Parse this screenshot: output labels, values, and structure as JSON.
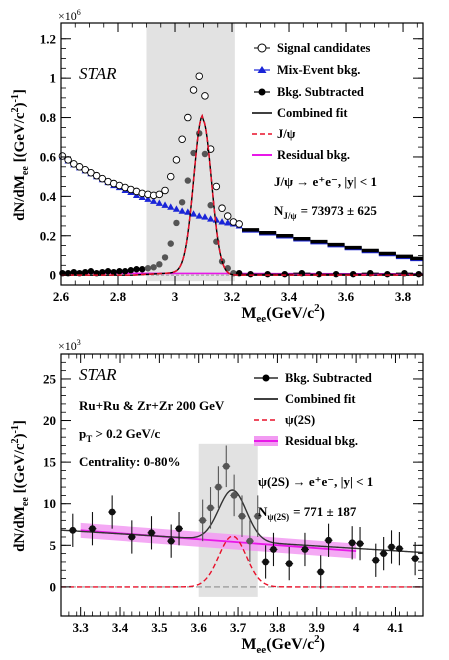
{
  "chart_data": [
    {
      "type": "scatter",
      "exponent_label": "×10",
      "exponent_power": "6",
      "xlabel_main": "M",
      "xlabel_sub": "ee",
      "xlabel_rest": "(GeV/c",
      "xlabel_sup": "2",
      "xlabel_end": ")",
      "ylabel": "dN/dMee [(GeV/c²)⁻¹]",
      "xlim": [
        2.6,
        3.87
      ],
      "ylim": [
        -0.05,
        1.28
      ],
      "x_ticks": [
        2.6,
        2.8,
        3.0,
        3.2,
        3.4,
        3.6,
        3.8
      ],
      "x_tick_labels": [
        "2.6",
        "2.8",
        "3",
        "3.2",
        "3.4",
        "3.6",
        "3.8"
      ],
      "y_ticks": [
        0,
        0.2,
        0.4,
        0.6,
        0.8,
        1.0,
        1.2
      ],
      "y_tick_labels": [
        "0",
        "0.2",
        "0.4",
        "0.6",
        "0.8",
        "1",
        "1.2"
      ],
      "shaded_region": [
        2.9,
        3.21
      ],
      "star_label": "STAR",
      "legend": [
        "Signal candidates",
        "Mix-Event bkg.",
        "Bkg. Subtracted",
        "Combined fit",
        "J/ψ",
        "Residual bkg."
      ],
      "annotation_channel": "J/ψ  → e⁺e⁻, |y| < 1",
      "annotation_count_label": "N",
      "annotation_count_sub": "J/ψ",
      "annotation_count_value": "= 73973  ± 625",
      "series": [
        {
          "name": "Signal candidates",
          "x": [
            2.605,
            2.625,
            2.645,
            2.665,
            2.685,
            2.705,
            2.725,
            2.745,
            2.765,
            2.785,
            2.805,
            2.825,
            2.845,
            2.865,
            2.885,
            2.905,
            2.925,
            2.945,
            2.965,
            2.985,
            3.005,
            3.025,
            3.045,
            3.065,
            3.085,
            3.105,
            3.125,
            3.145,
            3.165,
            3.185,
            3.205,
            3.225
          ],
          "y": [
            0.605,
            0.585,
            0.565,
            0.55,
            0.535,
            0.52,
            0.505,
            0.49,
            0.475,
            0.465,
            0.455,
            0.445,
            0.435,
            0.425,
            0.415,
            0.41,
            0.405,
            0.41,
            0.43,
            0.5,
            0.585,
            0.69,
            0.8,
            0.94,
            1.01,
            0.91,
            0.64,
            0.45,
            0.34,
            0.3,
            0.27,
            0.26
          ]
        },
        {
          "name": "Signal candidates (wide bins)",
          "x": [
            3.265,
            3.325,
            3.385,
            3.445,
            3.505,
            3.565,
            3.625,
            3.685,
            3.745,
            3.805,
            3.855
          ],
          "y": [
            0.23,
            0.215,
            0.2,
            0.185,
            0.17,
            0.155,
            0.14,
            0.125,
            0.11,
            0.095,
            0.085
          ]
        },
        {
          "name": "Mix-Event bkg.",
          "x": [
            2.605,
            2.625,
            2.645,
            2.665,
            2.685,
            2.705,
            2.725,
            2.745,
            2.765,
            2.785,
            2.805,
            2.825,
            2.845,
            2.865,
            2.885,
            2.905,
            2.925,
            2.945,
            2.965,
            2.985,
            3.005,
            3.025,
            3.045,
            3.065,
            3.085,
            3.105,
            3.125,
            3.145,
            3.165,
            3.185,
            3.205,
            3.225
          ],
          "y": [
            0.6,
            0.58,
            0.56,
            0.545,
            0.53,
            0.515,
            0.5,
            0.485,
            0.47,
            0.455,
            0.445,
            0.43,
            0.42,
            0.405,
            0.395,
            0.385,
            0.375,
            0.365,
            0.355,
            0.345,
            0.335,
            0.325,
            0.32,
            0.31,
            0.3,
            0.295,
            0.285,
            0.28,
            0.27,
            0.265,
            0.26,
            0.25
          ]
        },
        {
          "name": "Mix-Event bkg. (wide bins)",
          "x": [
            3.265,
            3.325,
            3.385,
            3.445,
            3.505,
            3.565,
            3.625,
            3.685,
            3.745,
            3.805,
            3.855
          ],
          "y": [
            0.225,
            0.21,
            0.195,
            0.18,
            0.165,
            0.15,
            0.135,
            0.12,
            0.105,
            0.09,
            0.08
          ]
        },
        {
          "name": "Bkg. Subtracted",
          "x": [
            2.605,
            2.625,
            2.645,
            2.665,
            2.685,
            2.705,
            2.725,
            2.745,
            2.765,
            2.785,
            2.805,
            2.825,
            2.845,
            2.865,
            2.885,
            2.905,
            2.925,
            2.945,
            2.965,
            2.985,
            3.005,
            3.025,
            3.045,
            3.065,
            3.085,
            3.105,
            3.125,
            3.145,
            3.165,
            3.185,
            3.205,
            3.225,
            3.265,
            3.325,
            3.385,
            3.445,
            3.505,
            3.565,
            3.625,
            3.685,
            3.745,
            3.805,
            3.855
          ],
          "y": [
            0.01,
            0.01,
            0.015,
            0.01,
            0.015,
            0.02,
            0.01,
            0.015,
            0.02,
            0.015,
            0.02,
            0.02,
            0.025,
            0.03,
            0.03,
            0.035,
            0.04,
            0.055,
            0.09,
            0.16,
            0.265,
            0.37,
            0.48,
            0.62,
            0.72,
            0.615,
            0.355,
            0.17,
            0.07,
            0.035,
            0.01,
            0.01,
            0.005,
            0.005,
            0.005,
            0.01,
            0.005,
            0.005,
            0.005,
            0.01,
            0.005,
            0.01,
            0.005
          ]
        }
      ],
      "fit_combined": {
        "name": "Combined fit",
        "amplitude": 0.79,
        "mean": 3.097,
        "sigma": 0.031,
        "tail_amp": 0.02,
        "tail_start": 2.85
      },
      "fit_residual": {
        "name": "Residual bkg.",
        "intercept": 0.01,
        "slope": -0.003
      },
      "colors": {
        "combined_fit": "#000000",
        "jpsi": "#e8102a",
        "mix": "#1a25d8",
        "residual": "#e818e8",
        "shade": "#e2e2e2"
      }
    },
    {
      "type": "scatter",
      "exponent_label": "×10",
      "exponent_power": "3",
      "xlabel_main": "M",
      "xlabel_sub": "ee",
      "xlabel_rest": "(GeV/c",
      "xlabel_sup": "2",
      "xlabel_end": ")",
      "ylabel": "dN/dMee [(GeV/c²)⁻¹]",
      "xlim": [
        3.25,
        4.17
      ],
      "ylim": [
        -3.5,
        28
      ],
      "x_ticks": [
        3.3,
        3.4,
        3.5,
        3.6,
        3.7,
        3.8,
        3.9,
        4.0,
        4.1
      ],
      "x_tick_labels": [
        "3.3",
        "3.4",
        "3.5",
        "3.6",
        "3.7",
        "3.8",
        "3.9",
        "4",
        "4.1"
      ],
      "y_ticks": [
        0,
        5,
        10,
        15,
        20,
        25
      ],
      "y_tick_labels": [
        "0",
        "5",
        "10",
        "15",
        "20",
        "25"
      ],
      "shaded_region": [
        3.6,
        3.75
      ],
      "star_label": "STAR",
      "info_lines": [
        "Ru+Ru & Zr+Zr 200 GeV",
        "p",
        "T",
        " > 0.2 GeV/c",
        "Centrality: 0-80%"
      ],
      "legend": [
        "Bkg. Subtracted",
        "Combined fit",
        "ψ(2S)",
        "Residual bkg."
      ],
      "annotation_channel": "ψ(2S)  → e⁺e⁻, |y| < 1",
      "annotation_count_label": "N",
      "annotation_count_sub": "ψ(2S)",
      "annotation_count_value": "= 771  ± 187",
      "series": [
        {
          "name": "Bkg. Subtracted",
          "x": [
            3.28,
            3.33,
            3.38,
            3.43,
            3.48,
            3.53,
            3.55,
            3.61,
            3.63,
            3.65,
            3.67,
            3.69,
            3.71,
            3.73,
            3.75,
            3.77,
            3.79,
            3.83,
            3.87,
            3.91,
            3.93,
            3.99,
            4.01,
            4.05,
            4.07,
            4.09,
            4.11,
            4.15
          ],
          "y": [
            6.8,
            7.0,
            9.0,
            6.0,
            6.5,
            5.5,
            7.0,
            8.0,
            9.5,
            12.0,
            14.5,
            11.0,
            8.5,
            5.5,
            8.5,
            3.0,
            4.5,
            2.8,
            4.5,
            1.8,
            5.6,
            5.3,
            5.2,
            3.2,
            4.0,
            4.8,
            4.6,
            3.4
          ],
          "err": [
            2.0,
            2.0,
            2.0,
            2.0,
            2.0,
            2.0,
            2.0,
            2.5,
            2.5,
            2.5,
            2.5,
            2.5,
            2.5,
            2.5,
            2.5,
            2.0,
            2.0,
            2.0,
            2.0,
            2.0,
            2.0,
            2.0,
            2.0,
            2.0,
            2.0,
            2.0,
            2.0,
            2.0
          ]
        }
      ],
      "fit_combined": {
        "name": "Combined fit",
        "amplitude": 6.1,
        "mean": 3.686,
        "sigma": 0.035
      },
      "fit_residual": {
        "name": "Residual bkg.",
        "x_start": 3.3,
        "x_end": 4.0,
        "y_start": 6.8,
        "y_end": 4.3,
        "band": 0.9
      },
      "colors": {
        "combined_fit": "#333333",
        "psi2s": "#e8102a",
        "residual": "#e818e8",
        "band": "#f29af2",
        "shade": "#e2e2e2"
      }
    }
  ]
}
